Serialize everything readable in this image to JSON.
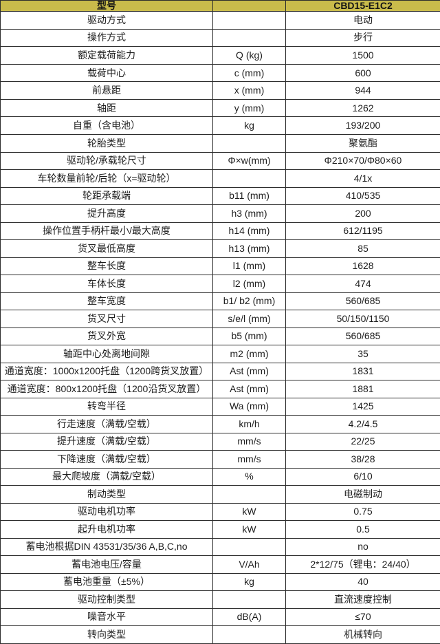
{
  "colors": {
    "header_bg": "#c9bb4b",
    "border": "#2d2d2d",
    "text": "#1c1c1c",
    "cell_bg": "#ffffff"
  },
  "table": {
    "header": {
      "label": "型号",
      "unit": "",
      "value": "CBD15-E1C2"
    },
    "rows": [
      {
        "label": "驱动方式",
        "unit": "",
        "value": "电动"
      },
      {
        "label": "操作方式",
        "unit": "",
        "value": "步行"
      },
      {
        "label": "额定载荷能力",
        "unit": "Q (kg)",
        "value": "1500"
      },
      {
        "label": "载荷中心",
        "unit": "c (mm)",
        "value": "600"
      },
      {
        "label": "前悬距",
        "unit": "x (mm)",
        "value": "944"
      },
      {
        "label": "轴距",
        "unit": "y (mm)",
        "value": "1262"
      },
      {
        "label": "自重（含电池）",
        "unit": "kg",
        "value": "193/200"
      },
      {
        "label": "轮胎类型",
        "unit": "",
        "value": "聚氨酯"
      },
      {
        "label": "驱动轮/承载轮尺寸",
        "unit": "Φ×w(mm)",
        "value": "Φ210×70/Φ80×60"
      },
      {
        "label": "车轮数量前轮/后轮（x=驱动轮）",
        "unit": "",
        "value": "4/1x"
      },
      {
        "label": "轮距承载端",
        "unit": "b11 (mm)",
        "value": "410/535"
      },
      {
        "label": "提升高度",
        "unit": "h3 (mm)",
        "value": "200"
      },
      {
        "label": "操作位置手柄杆最小/最大高度",
        "unit": "h14 (mm)",
        "value": "612/1195"
      },
      {
        "label": "货叉最低高度",
        "unit": "h13 (mm)",
        "value": "85"
      },
      {
        "label": "整车长度",
        "unit": "l1 (mm)",
        "value": "1628"
      },
      {
        "label": "车体长度",
        "unit": "l2 (mm)",
        "value": "474"
      },
      {
        "label": "整车宽度",
        "unit": "b1/ b2 (mm)",
        "value": "560/685"
      },
      {
        "label": "货叉尺寸",
        "unit": "s/e/l (mm)",
        "value": "50/150/1150"
      },
      {
        "label": "货叉外宽",
        "unit": "b5 (mm)",
        "value": "560/685"
      },
      {
        "label": "轴距中心处离地间隙",
        "unit": "m2 (mm)",
        "value": "35"
      },
      {
        "label": "通道宽度：1000x1200托盘（1200跨货叉放置）",
        "unit": "Ast (mm)",
        "value": "1831"
      },
      {
        "label": "通道宽度：800x1200托盘（1200沿货叉放置）",
        "unit": "Ast (mm)",
        "value": "1881"
      },
      {
        "label": "转弯半径",
        "unit": "Wa (mm)",
        "value": "1425"
      },
      {
        "label": "行走速度（满载/空载）",
        "unit": "km/h",
        "value": "4.2/4.5"
      },
      {
        "label": "提升速度（满载/空载）",
        "unit": "mm/s",
        "value": "22/25"
      },
      {
        "label": "下降速度（满载/空载）",
        "unit": "mm/s",
        "value": "38/28"
      },
      {
        "label": "最大爬坡度（满载/空载）",
        "unit": "%",
        "value": "6/10"
      },
      {
        "label": "制动类型",
        "unit": "",
        "value": "电磁制动"
      },
      {
        "label": "驱动电机功率",
        "unit": "kW",
        "value": "0.75"
      },
      {
        "label": "起升电机功率",
        "unit": "kW",
        "value": "0.5"
      },
      {
        "label": "蓄电池根据DIN 43531/35/36 A,B,C,no",
        "unit": "",
        "value": "no"
      },
      {
        "label": "蓄电池电压/容量",
        "unit": "V/Ah",
        "value": "2*12/75（锂电：24/40）"
      },
      {
        "label": "蓄电池重量（±5%）",
        "unit": "kg",
        "value": "40"
      },
      {
        "label": "驱动控制类型",
        "unit": "",
        "value": "直流速度控制"
      },
      {
        "label": "噪音水平",
        "unit": "dB(A)",
        "value": "≤70"
      },
      {
        "label": "转向类型",
        "unit": "",
        "value": "机械转向"
      }
    ]
  }
}
